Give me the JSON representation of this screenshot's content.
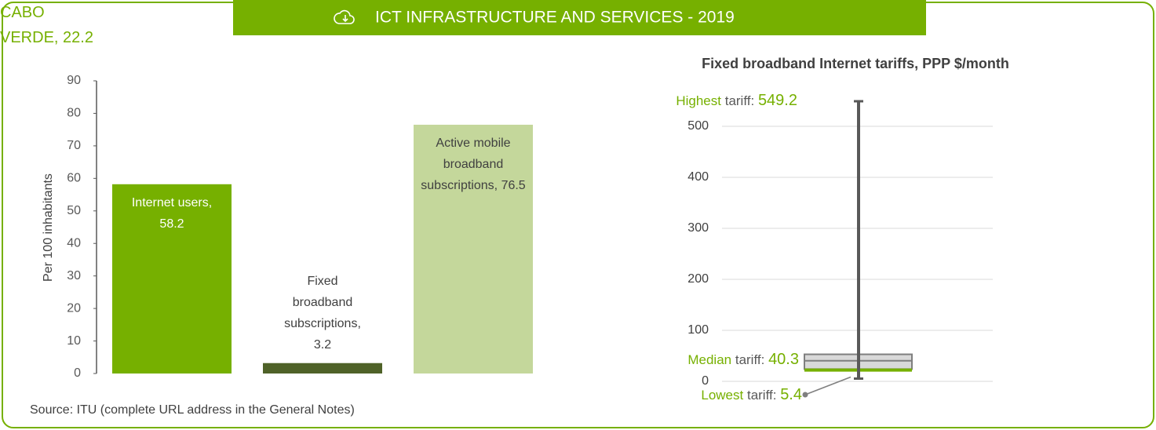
{
  "header": {
    "title": "ICT INFRASTRUCTURE AND SERVICES  - 2019"
  },
  "source": "Source: ITU (complete URL address in the General Notes)",
  "chart_data": [
    {
      "type": "bar",
      "categories": [
        "Internet users,",
        "Fixed broadband subscriptions,",
        "Active mobile broadband subscriptions,"
      ],
      "values": [
        58.2,
        3.2,
        76.5
      ],
      "colors": [
        "#76b000",
        "#4f6228",
        "#c4d79b"
      ],
      "ylabel": "Per 100 inhabitants",
      "ylim": [
        0,
        90
      ],
      "yticks": [
        0,
        10,
        20,
        30,
        40,
        50,
        60,
        70,
        80,
        90
      ],
      "grid": false
    },
    {
      "type": "range",
      "title": "Fixed broadband Internet tariffs, PPP $/month",
      "highest": {
        "label": "Highest",
        "label2": "tariff:",
        "value": 549.2
      },
      "median": {
        "label": "Median",
        "label2": "tariff:",
        "value": 40.3
      },
      "lowest": {
        "label": "Lowest",
        "label2": "tariff:",
        "value": 5.4
      },
      "q1": 24,
      "q3": 53,
      "country": {
        "name": "CABO VERDE,",
        "value": 22.2,
        "color": "#76b000"
      },
      "ylim": [
        0,
        550
      ],
      "yticks": [
        0,
        100,
        200,
        300,
        400,
        500
      ],
      "grid": true
    }
  ]
}
